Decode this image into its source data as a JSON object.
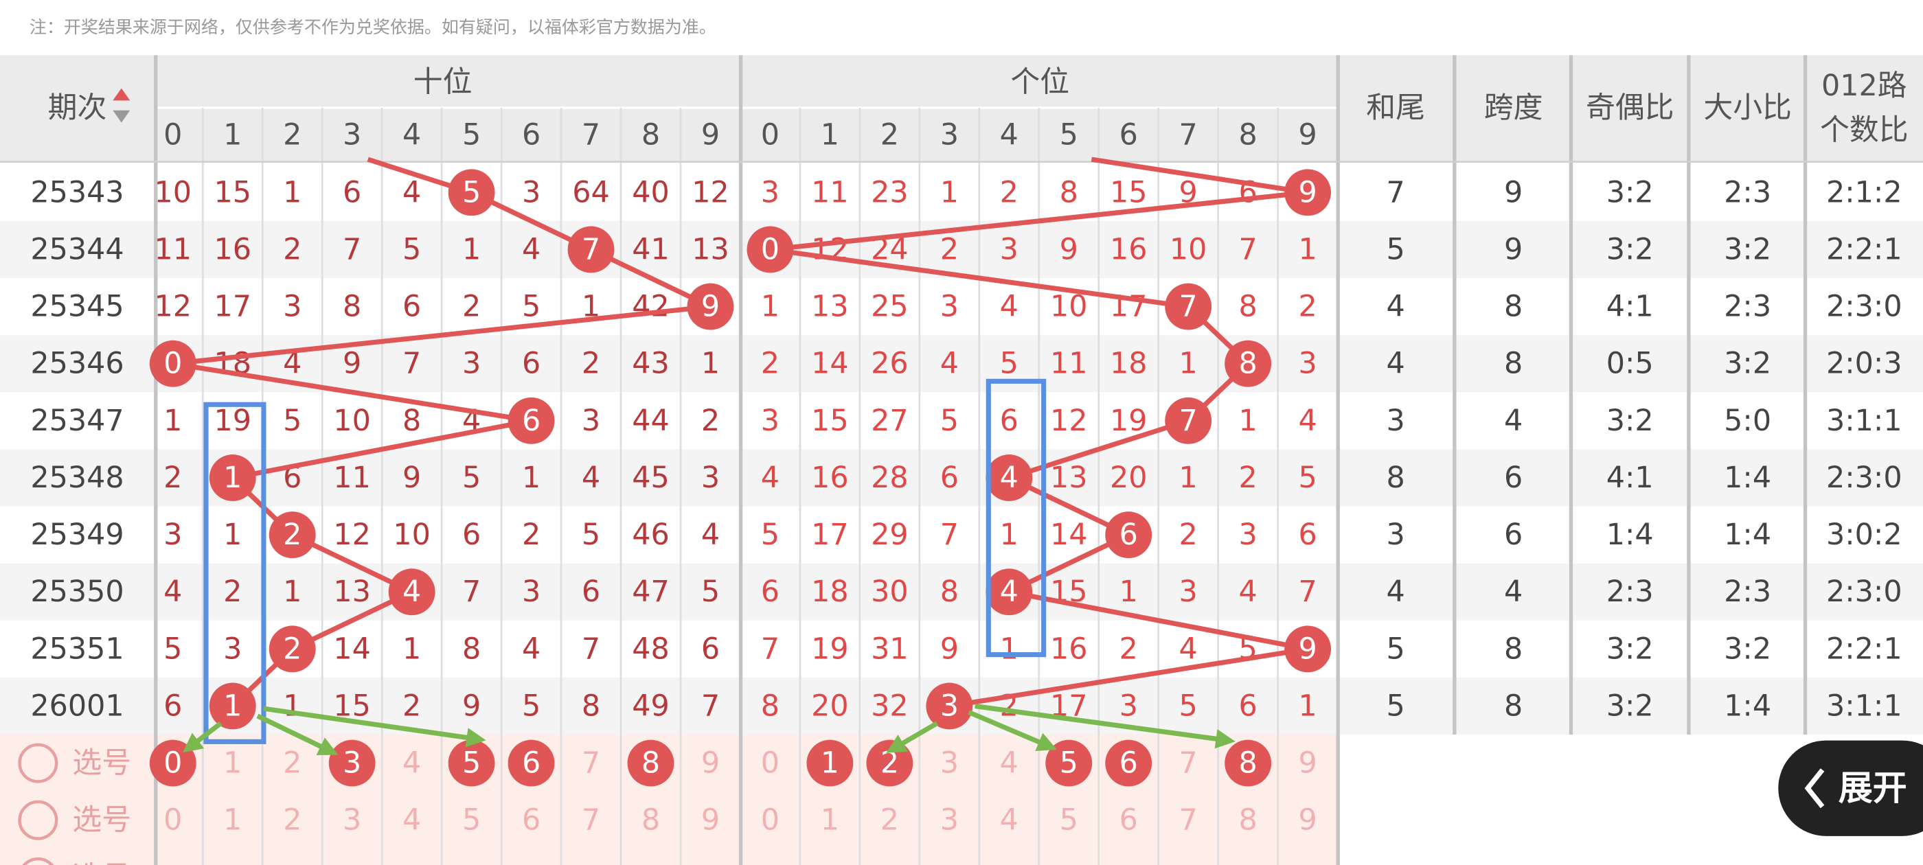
{
  "note": "注：开奖结果来源于网络，仅供参考不作为兑奖依据。如有疑问，以福体彩官方数据为准。",
  "header": {
    "period": "期次",
    "tens": "十位",
    "ones": "个位",
    "tail": "和尾",
    "span": "跨度",
    "odd_even": "奇偶比",
    "big_small": "大小比",
    "route": [
      "012路",
      "个数比"
    ]
  },
  "digits": [
    0,
    1,
    2,
    3,
    4,
    5,
    6,
    7,
    8,
    9
  ],
  "rows": [
    {
      "period": 25343,
      "tens": [
        10,
        15,
        1,
        6,
        4,
        5,
        3,
        64,
        40,
        12
      ],
      "tens_hit": 5,
      "ones": [
        3,
        11,
        23,
        1,
        2,
        8,
        15,
        9,
        6,
        9
      ],
      "ones_hit": 9,
      "tail": 7,
      "span": 9,
      "odd_even": "3:2",
      "big_small": "2:3",
      "route": "2:1:2"
    },
    {
      "period": 25344,
      "tens": [
        11,
        16,
        2,
        7,
        5,
        1,
        4,
        7,
        41,
        13
      ],
      "tens_hit": 7,
      "ones": [
        0,
        12,
        24,
        2,
        3,
        9,
        16,
        10,
        7,
        1
      ],
      "ones_hit": 0,
      "tail": 5,
      "span": 9,
      "odd_even": "3:2",
      "big_small": "3:2",
      "route": "2:2:1"
    },
    {
      "period": 25345,
      "tens": [
        12,
        17,
        3,
        8,
        6,
        2,
        5,
        1,
        42,
        9
      ],
      "tens_hit": 9,
      "ones": [
        1,
        13,
        25,
        3,
        4,
        10,
        17,
        7,
        8,
        2
      ],
      "ones_hit": 7,
      "tail": 4,
      "span": 8,
      "odd_even": "4:1",
      "big_small": "2:3",
      "route": "2:3:0"
    },
    {
      "period": 25346,
      "tens": [
        0,
        18,
        4,
        9,
        7,
        3,
        6,
        2,
        43,
        1
      ],
      "tens_hit": 0,
      "ones": [
        2,
        14,
        26,
        4,
        5,
        11,
        18,
        1,
        8,
        3
      ],
      "ones_hit": 8,
      "tail": 4,
      "span": 8,
      "odd_even": "0:5",
      "big_small": "3:2",
      "route": "2:0:3"
    },
    {
      "period": 25347,
      "tens": [
        1,
        19,
        5,
        10,
        8,
        4,
        6,
        3,
        44,
        2
      ],
      "tens_hit": 6,
      "ones": [
        3,
        15,
        27,
        5,
        6,
        12,
        19,
        7,
        1,
        4
      ],
      "ones_hit": 7,
      "tail": 3,
      "span": 4,
      "odd_even": "3:2",
      "big_small": "5:0",
      "route": "3:1:1"
    },
    {
      "period": 25348,
      "tens": [
        2,
        1,
        6,
        11,
        9,
        5,
        1,
        4,
        45,
        3
      ],
      "tens_hit": 1,
      "ones": [
        4,
        16,
        28,
        6,
        4,
        13,
        20,
        1,
        2,
        5
      ],
      "ones_hit": 4,
      "tail": 8,
      "span": 6,
      "odd_even": "4:1",
      "big_small": "1:4",
      "route": "2:3:0"
    },
    {
      "period": 25349,
      "tens": [
        3,
        1,
        2,
        12,
        10,
        6,
        2,
        5,
        46,
        4
      ],
      "tens_hit": 2,
      "ones": [
        5,
        17,
        29,
        7,
        1,
        14,
        6,
        2,
        3,
        6
      ],
      "ones_hit": 6,
      "tail": 3,
      "span": 6,
      "odd_even": "1:4",
      "big_small": "1:4",
      "route": "3:0:2"
    },
    {
      "period": 25350,
      "tens": [
        4,
        2,
        1,
        13,
        4,
        7,
        3,
        6,
        47,
        5
      ],
      "tens_hit": 4,
      "ones": [
        6,
        18,
        30,
        8,
        4,
        15,
        1,
        3,
        4,
        7
      ],
      "ones_hit": 4,
      "tail": 4,
      "span": 4,
      "odd_even": "2:3",
      "big_small": "2:3",
      "route": "2:3:0"
    },
    {
      "period": 25351,
      "tens": [
        5,
        3,
        2,
        14,
        1,
        8,
        4,
        7,
        48,
        6
      ],
      "tens_hit": 2,
      "ones": [
        7,
        19,
        31,
        9,
        1,
        16,
        2,
        4,
        5,
        9
      ],
      "ones_hit": 9,
      "tail": 5,
      "span": 8,
      "odd_even": "3:2",
      "big_small": "3:2",
      "route": "2:2:1"
    },
    {
      "period": 26001,
      "tens": [
        6,
        1,
        1,
        15,
        2,
        9,
        5,
        8,
        49,
        7
      ],
      "tens_hit": 1,
      "ones": [
        8,
        20,
        32,
        3,
        2,
        17,
        3,
        5,
        6,
        1
      ],
      "ones_hit": 3,
      "tail": 5,
      "span": 8,
      "odd_even": "3:2",
      "big_small": "1:4",
      "route": "3:1:1"
    }
  ],
  "pick_rows": [
    {
      "label": "选号",
      "tens_selected": [
        0,
        3,
        5,
        6,
        8
      ],
      "ones_selected": [
        1,
        2,
        5,
        6,
        8
      ]
    },
    {
      "label": "选号",
      "tens_selected": [],
      "ones_selected": []
    },
    {
      "label": "选号",
      "tens_selected": [],
      "ones_selected": []
    }
  ],
  "expand_button": "展开"
}
